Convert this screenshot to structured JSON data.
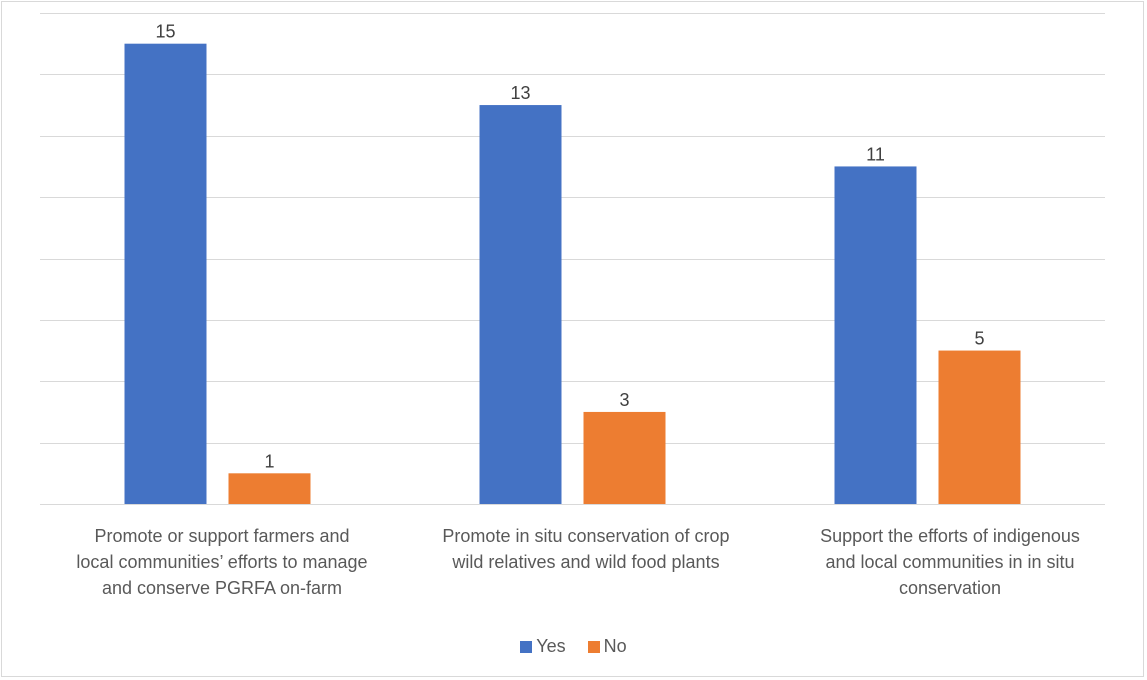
{
  "chart_data": {
    "type": "bar",
    "categories": [
      "Promote or support farmers and local communities’ efforts to manage and conserve PGRFA on-farm",
      "Promote in situ conservation of crop wild relatives and wild food plants",
      "Support the efforts of indigenous and local communities in in situ conservation"
    ],
    "category_lines": [
      [
        "Promote or support farmers and",
        "local communities’ efforts to manage",
        "and conserve PGRFA on-farm"
      ],
      [
        "Promote in situ conservation of crop",
        "wild relatives and wild food plants"
      ],
      [
        "Support the efforts of indigenous",
        "and local communities in in situ",
        "conservation"
      ]
    ],
    "series": [
      {
        "name": "Yes",
        "values": [
          15,
          13,
          11
        ],
        "color": "#4472c4"
      },
      {
        "name": "No",
        "values": [
          1,
          3,
          5
        ],
        "color": "#ed7d31"
      }
    ],
    "ylim": [
      0,
      16
    ],
    "gridline_step": 2,
    "grid": true,
    "y_axis_labels_shown": false,
    "legend_position": "bottom"
  }
}
